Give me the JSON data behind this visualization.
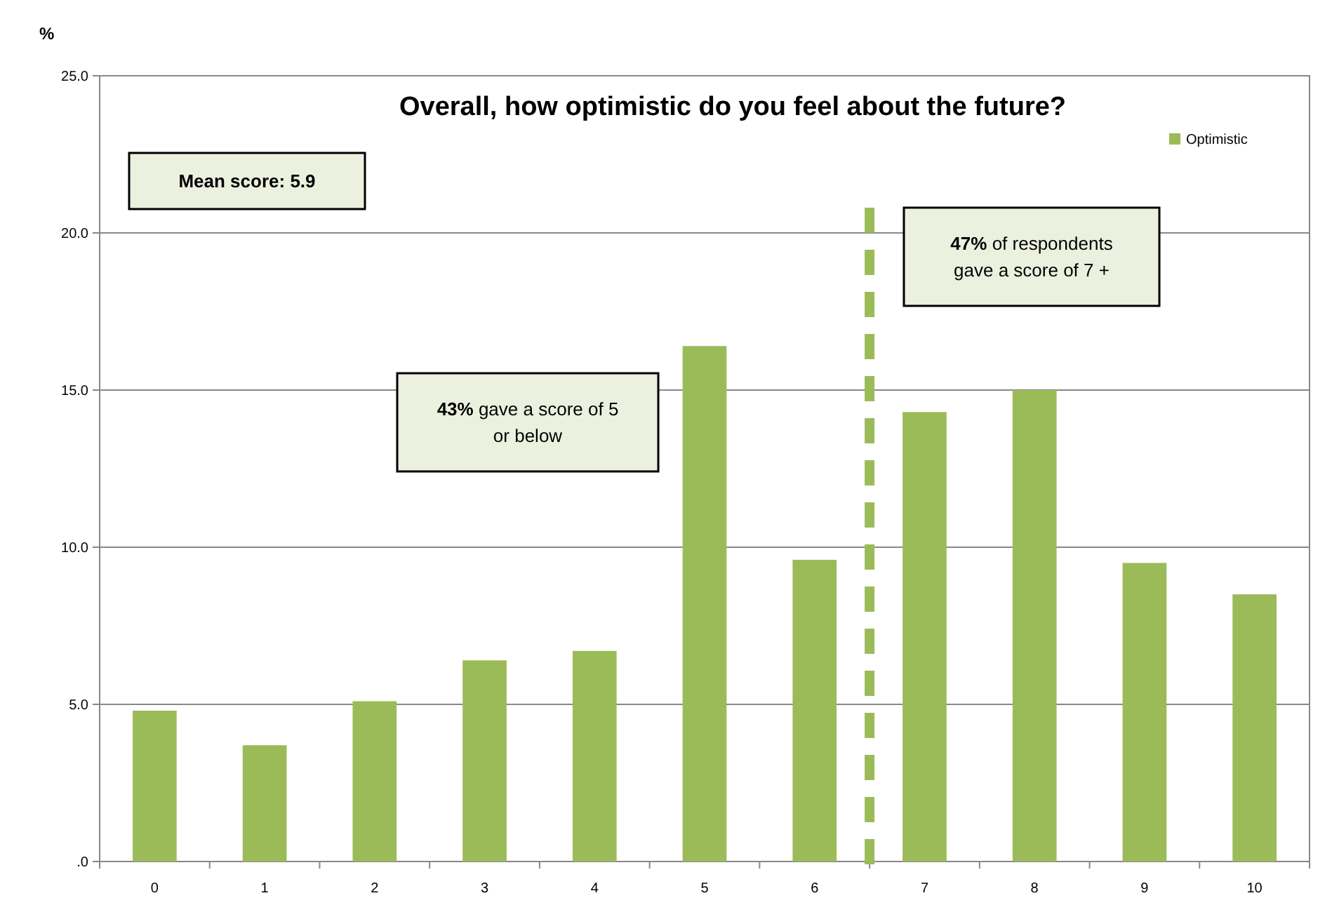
{
  "chart_data": {
    "type": "bar",
    "title": "Overall, how optimistic do you feel about the future?",
    "ylabel": "%",
    "x": [
      0,
      1,
      2,
      3,
      4,
      5,
      6,
      7,
      8,
      9,
      10
    ],
    "xlim": [
      -0.5,
      10.5
    ],
    "xticks": [
      0,
      1,
      2,
      3,
      4,
      5,
      6,
      7,
      8,
      9,
      10
    ],
    "series": [
      {
        "name": "Optimistic",
        "color": "#9bbb59",
        "values": [
          4.8,
          3.7,
          5.1,
          6.4,
          6.7,
          16.4,
          9.6,
          14.3,
          15.0,
          9.5,
          8.5
        ]
      }
    ],
    "ylim": [
      0,
      25
    ],
    "yticks": [
      {
        "value": 0,
        "label": ".0"
      },
      {
        "value": 5,
        "label": "5.0"
      },
      {
        "value": 10,
        "label": "10.0"
      },
      {
        "value": 15,
        "label": "15.0"
      },
      {
        "value": 20,
        "label": "20.0"
      },
      {
        "value": 25,
        "label": "25.0"
      }
    ],
    "grid": "y",
    "legend": "top right",
    "ref_lines": [
      {
        "axis": "x",
        "value": 6.5,
        "color": "#9bbb59",
        "line_style": "dashed"
      }
    ],
    "annotations": [
      "Mean score: 5.9",
      "43% gave a score of 5 or below",
      "47% of respondents gave a score of 7 +"
    ]
  }
}
